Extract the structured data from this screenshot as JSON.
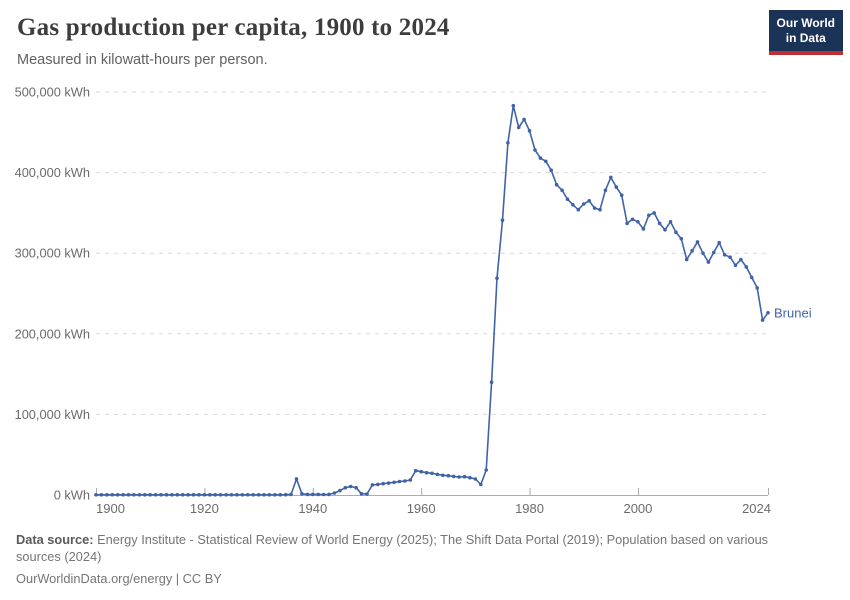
{
  "header": {
    "title": "Gas production per capita, 1900 to 2024",
    "subtitle": "Measured in kilowatt-hours per person."
  },
  "logo": {
    "line1": "Our World",
    "line2": "in Data",
    "bg_color": "#1c3358",
    "accent_color": "#c12f36"
  },
  "chart_data": {
    "type": "line",
    "title": "Gas production per capita, 1900 to 2024",
    "xlabel": "",
    "ylabel": "kilowatt-hours per person",
    "unit": "kWh",
    "xlim": [
      1900,
      2024
    ],
    "ylim": [
      0,
      500000
    ],
    "grid": "horizontal dashed",
    "legend_position": "end-of-line label",
    "x_ticks": [
      1900,
      1920,
      1940,
      1960,
      1980,
      2000,
      2024
    ],
    "y_ticks": [
      0,
      100000,
      200000,
      300000,
      400000,
      500000
    ],
    "y_tick_labels": [
      "0 kWh",
      "100,000 kWh",
      "200,000 kWh",
      "300,000 kWh",
      "400,000 kWh",
      "500,000 kWh"
    ],
    "colors": {
      "line": "#4063a8",
      "gridline": "#dadada",
      "axis": "#ababab",
      "tick_label": "#6b6b6b"
    },
    "series": [
      {
        "name": "Brunei",
        "color": "#4063a8",
        "x": [
          1900,
          1901,
          1902,
          1903,
          1904,
          1905,
          1906,
          1907,
          1908,
          1909,
          1910,
          1911,
          1912,
          1913,
          1914,
          1915,
          1916,
          1917,
          1918,
          1919,
          1920,
          1921,
          1922,
          1923,
          1924,
          1925,
          1926,
          1927,
          1928,
          1929,
          1930,
          1931,
          1932,
          1933,
          1934,
          1935,
          1936,
          1937,
          1938,
          1939,
          1940,
          1941,
          1942,
          1943,
          1944,
          1945,
          1946,
          1947,
          1948,
          1949,
          1950,
          1951,
          1952,
          1953,
          1954,
          1955,
          1956,
          1957,
          1958,
          1959,
          1960,
          1961,
          1962,
          1963,
          1964,
          1965,
          1966,
          1967,
          1968,
          1969,
          1970,
          1971,
          1972,
          1973,
          1974,
          1975,
          1976,
          1977,
          1978,
          1979,
          1980,
          1981,
          1982,
          1983,
          1984,
          1985,
          1986,
          1987,
          1988,
          1989,
          1990,
          1991,
          1992,
          1993,
          1994,
          1995,
          1996,
          1997,
          1998,
          1999,
          2000,
          2001,
          2002,
          2003,
          2004,
          2005,
          2006,
          2007,
          2008,
          2009,
          2010,
          2011,
          2012,
          2013,
          2014,
          2015,
          2016,
          2017,
          2018,
          2019,
          2020,
          2021,
          2022,
          2023,
          2024
        ],
        "values": [
          300,
          300,
          300,
          300,
          300,
          300,
          300,
          300,
          300,
          300,
          300,
          300,
          300,
          300,
          300,
          300,
          300,
          300,
          300,
          300,
          300,
          300,
          300,
          300,
          300,
          300,
          300,
          300,
          300,
          300,
          300,
          300,
          300,
          300,
          300,
          400,
          700,
          20000,
          1500,
          800,
          700,
          700,
          600,
          800,
          2500,
          5500,
          9000,
          10500,
          9000,
          1500,
          1200,
          12500,
          13200,
          14000,
          14800,
          15800,
          16700,
          17400,
          18600,
          30200,
          28900,
          27700,
          26900,
          25600,
          24400,
          23900,
          23100,
          22300,
          22700,
          21500,
          19800,
          13000,
          31000,
          140000,
          269000,
          341000,
          437000,
          483000,
          456000,
          466000,
          452000,
          428000,
          418000,
          414000,
          403000,
          385000,
          378000,
          367000,
          360000,
          354000,
          361000,
          365000,
          356000,
          354000,
          378000,
          394000,
          382000,
          372000,
          337000,
          342000,
          339000,
          330000,
          347000,
          350000,
          337000,
          329000,
          339000,
          326000,
          318000,
          292000,
          303000,
          314000,
          300000,
          289000,
          301000,
          313000,
          298000,
          295000,
          285000,
          292000,
          283000,
          270000,
          257000,
          217000,
          226000
        ]
      }
    ]
  },
  "footer": {
    "datasource_label": "Data source:",
    "datasource_text": " Energy Institute - Statistical Review of World Energy (2025); The Shift Data Portal (2019); Population based on various sources (2024)",
    "license": "OurWorldinData.org/energy | CC BY"
  }
}
